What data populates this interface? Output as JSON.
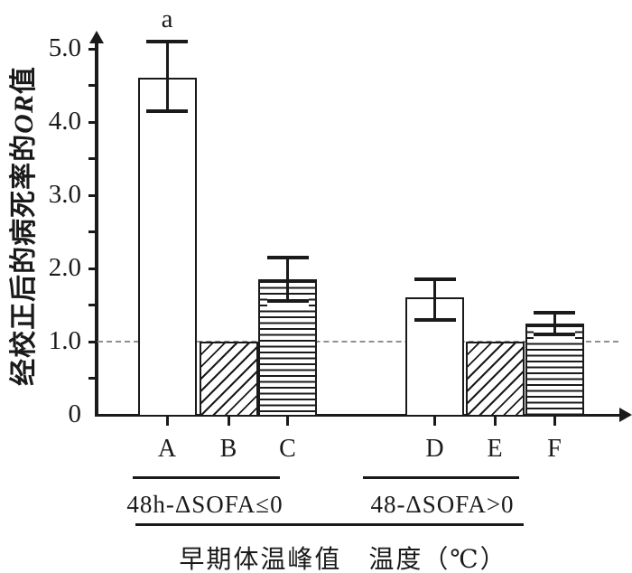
{
  "chart_data": {
    "type": "bar",
    "ylabel": "经校正后的病死率的OR值",
    "ylabel_parts": {
      "prefix": "经校正后的病死率的",
      "or": "OR",
      "suffix": "值"
    },
    "xlabel": "早期体温峰值　温度（℃）",
    "y_axis": {
      "min": 0,
      "max": 5.0,
      "minor_step": 0.5,
      "major_ticks": [
        {
          "value": 5,
          "label": "5.0"
        },
        {
          "value": 4,
          "label": "4.0"
        },
        {
          "value": 3,
          "label": "3.0"
        },
        {
          "value": 2,
          "label": "2.0"
        },
        {
          "value": 1,
          "label": "1.0"
        },
        {
          "value": 0,
          "label": "0"
        }
      ]
    },
    "reference_line": {
      "value": 1.0,
      "style": "dashed"
    },
    "categories": [
      "A",
      "B",
      "C",
      "D",
      "E",
      "F"
    ],
    "bars": [
      {
        "label": "A",
        "value": 4.6,
        "ci_low": 4.15,
        "ci_high": 5.1,
        "pattern": "plain",
        "annotation": "a"
      },
      {
        "label": "B",
        "value": 1.0,
        "pattern": "diagonal-hatch"
      },
      {
        "label": "C",
        "value": 1.85,
        "ci_low": 1.55,
        "ci_high": 2.15,
        "pattern": "horizontal-hatch"
      },
      {
        "label": "D",
        "value": 1.6,
        "ci_low": 1.3,
        "ci_high": 1.85,
        "pattern": "plain"
      },
      {
        "label": "E",
        "value": 1.0,
        "pattern": "diagonal-hatch"
      },
      {
        "label": "F",
        "value": 1.25,
        "ci_low": 1.1,
        "ci_high": 1.4,
        "pattern": "horizontal-hatch"
      }
    ],
    "groups": [
      {
        "label": "48h-ΔSOFA≤0",
        "bars": [
          "A",
          "B",
          "C"
        ]
      },
      {
        "label": "48-ΔSOFA>0",
        "bars": [
          "D",
          "E",
          "F"
        ]
      }
    ],
    "colors": {
      "ink": "#1a1a1a",
      "background": "#ffffff",
      "dashed_line": "#8f8f8f"
    }
  }
}
